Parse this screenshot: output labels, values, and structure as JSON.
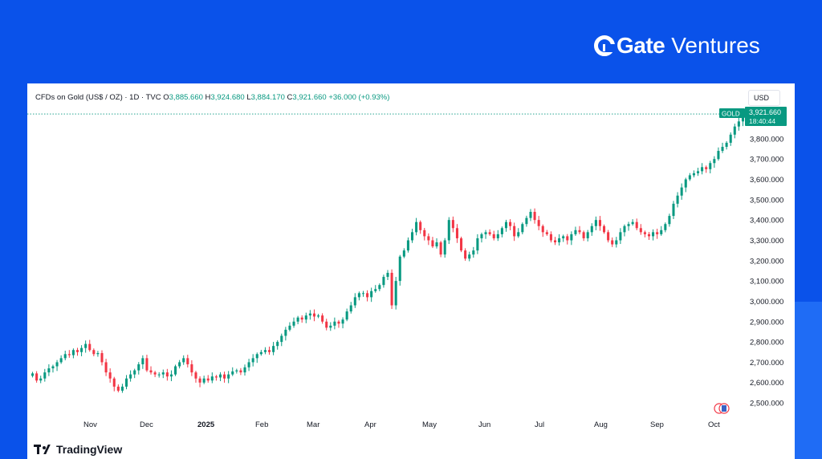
{
  "brand": {
    "gate": "Gate",
    "ventures": "Ventures"
  },
  "legend": {
    "symbol": "CFDs on Gold (US$ / OZ) · 1D · TVC",
    "o_label": "O",
    "o_value": "3,885.660",
    "h_label": "H",
    "h_value": "3,924.680",
    "l_label": "L",
    "l_value": "3,884.170",
    "c_label": "C",
    "c_value": "3,921.660",
    "change": "+36.000 (+0.93%)"
  },
  "currency_button": "USD",
  "price_tag": {
    "symbol": "GOLD",
    "price": "3,921.660",
    "countdown": "18:40:44"
  },
  "footer_logo": "TradingView",
  "colors": {
    "up": "#089981",
    "down": "#f23645",
    "background": "#0a52ea"
  },
  "chart_data": {
    "type": "candlestick",
    "x_tick_labels": [
      "Nov",
      "Dec",
      "2025",
      "Feb",
      "Mar",
      "Apr",
      "May",
      "Jun",
      "Jul",
      "Aug",
      "Sep",
      "Oct"
    ],
    "y_tick_labels": [
      "3,800.000",
      "3,700.000",
      "3,600.000",
      "3,500.000",
      "3,400.000",
      "3,300.000",
      "3,200.000",
      "3,100.000",
      "3,000.000",
      "2,900.000",
      "2,800.000",
      "2,700.000",
      "2,600.000",
      "2,500.000"
    ],
    "y_ticks": [
      3800,
      3700,
      3600,
      3500,
      3400,
      3300,
      3200,
      3100,
      3000,
      2900,
      2800,
      2700,
      2600,
      2500
    ],
    "ylim": [
      2445,
      3985
    ],
    "last_close": 3921.66,
    "closes": [
      2645,
      2610,
      2620,
      2650,
      2670,
      2680,
      2700,
      2720,
      2740,
      2735,
      2760,
      2750,
      2770,
      2790,
      2760,
      2740,
      2745,
      2700,
      2650,
      2620,
      2580,
      2560,
      2580,
      2620,
      2640,
      2660,
      2690,
      2720,
      2660,
      2650,
      2640,
      2640,
      2650,
      2630,
      2640,
      2680,
      2700,
      2720,
      2690,
      2650,
      2620,
      2600,
      2620,
      2610,
      2630,
      2625,
      2640,
      2620,
      2640,
      2655,
      2660,
      2650,
      2675,
      2700,
      2720,
      2740,
      2750,
      2760,
      2750,
      2780,
      2800,
      2830,
      2860,
      2880,
      2900,
      2920,
      2910,
      2930,
      2940,
      2925,
      2930,
      2900,
      2870,
      2880,
      2900,
      2890,
      2910,
      2950,
      2980,
      3020,
      3040,
      3040,
      3020,
      3050,
      3060,
      3080,
      3120,
      3140,
      2980,
      3100,
      3220,
      3250,
      3300,
      3340,
      3390,
      3350,
      3320,
      3300,
      3270,
      3290,
      3230,
      3300,
      3400,
      3360,
      3310,
      3250,
      3210,
      3230,
      3250,
      3310,
      3330,
      3340,
      3330,
      3310,
      3330,
      3360,
      3390,
      3370,
      3320,
      3340,
      3380,
      3410,
      3440,
      3400,
      3370,
      3340,
      3330,
      3300,
      3290,
      3310,
      3320,
      3300,
      3330,
      3350,
      3340,
      3310,
      3340,
      3370,
      3400,
      3370,
      3340,
      3300,
      3280,
      3300,
      3340,
      3370,
      3380,
      3390,
      3360,
      3340,
      3330,
      3320,
      3340,
      3330,
      3350,
      3380,
      3420,
      3480,
      3520,
      3560,
      3600,
      3620,
      3630,
      3640,
      3660,
      3650,
      3680,
      3700,
      3740,
      3760,
      3780,
      3820,
      3860,
      3885,
      3921.66
    ]
  }
}
